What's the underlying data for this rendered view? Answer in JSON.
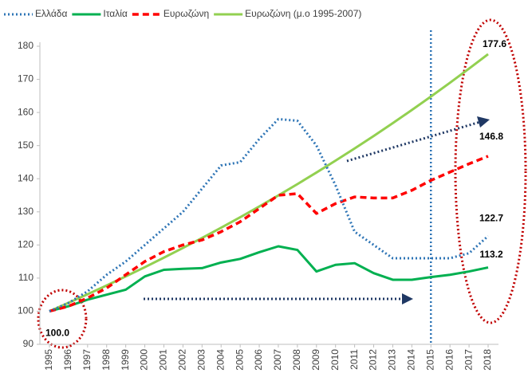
{
  "chart_data": {
    "type": "line",
    "categories": [
      "1995",
      "1996",
      "1997",
      "1998",
      "1999",
      "2000",
      "2001",
      "2002",
      "2003",
      "2004",
      "2005",
      "2006",
      "2007",
      "2008",
      "2009",
      "2010",
      "2011",
      "2012",
      "2013",
      "2014",
      "2015",
      "2016",
      "2017",
      "2018"
    ],
    "ylim": [
      90,
      180
    ],
    "yticks": [
      90,
      100,
      110,
      120,
      130,
      140,
      150,
      160,
      170,
      180
    ],
    "vline": "2015",
    "series": [
      {
        "name": "Ελλάδα",
        "color": "#2e75b6",
        "style": "dotted",
        "values": [
          100,
          102.5,
          106,
          111,
          115,
          120,
          125,
          130,
          137,
          144,
          145,
          152,
          158,
          157.5,
          150,
          138,
          124,
          120,
          116,
          116,
          116,
          116,
          117.5,
          122.7
        ],
        "value_labels": [
          "100.0",
          null,
          null,
          null,
          null,
          null,
          null,
          null,
          null,
          null,
          null,
          null,
          null,
          null,
          null,
          null,
          null,
          null,
          null,
          null,
          null,
          null,
          null,
          "122.7"
        ]
      },
      {
        "name": "Ιταλία",
        "color": "#00b050",
        "style": "solid",
        "values": [
          100,
          101.5,
          103.5,
          105,
          106.5,
          110.5,
          112.5,
          112.8,
          113,
          114.7,
          115.8,
          117.8,
          119.6,
          118.5,
          112,
          114,
          114.5,
          111.5,
          109.5,
          109.5,
          110.3,
          111,
          112,
          113.2
        ],
        "value_labels": [
          null,
          null,
          null,
          null,
          null,
          null,
          null,
          null,
          null,
          null,
          null,
          null,
          null,
          null,
          null,
          null,
          null,
          null,
          null,
          null,
          null,
          null,
          null,
          "113.2"
        ]
      },
      {
        "name": "Ευρωζώνη",
        "color": "#ff0000",
        "style": "dashed",
        "values": [
          100,
          101.5,
          104,
          107,
          111,
          115,
          118,
          120,
          121.5,
          124,
          127,
          131,
          135,
          135.5,
          129.5,
          132.5,
          134.5,
          134.2,
          134.2,
          136.5,
          139.5,
          142,
          144.5,
          146.8
        ],
        "value_labels": [
          null,
          null,
          null,
          null,
          null,
          null,
          null,
          null,
          null,
          null,
          null,
          null,
          null,
          null,
          null,
          null,
          null,
          null,
          null,
          null,
          null,
          null,
          null,
          "146.8"
        ]
      },
      {
        "name": "Ευρωζώνη (μ.ο 1995-2007)",
        "color": "#92d050",
        "style": "solid",
        "values": [
          100,
          102.53,
          105.12,
          107.78,
          110.51,
          113.3,
          116.17,
          119.11,
          122.12,
          125.21,
          128.38,
          131.62,
          134.95,
          138.37,
          141.87,
          145.46,
          149.14,
          152.91,
          156.78,
          160.74,
          164.81,
          168.98,
          173.25,
          177.6
        ],
        "value_labels": [
          null,
          null,
          null,
          null,
          null,
          null,
          null,
          null,
          null,
          null,
          null,
          null,
          null,
          null,
          null,
          null,
          null,
          null,
          null,
          null,
          null,
          null,
          null,
          "177.6"
        ]
      }
    ]
  }
}
